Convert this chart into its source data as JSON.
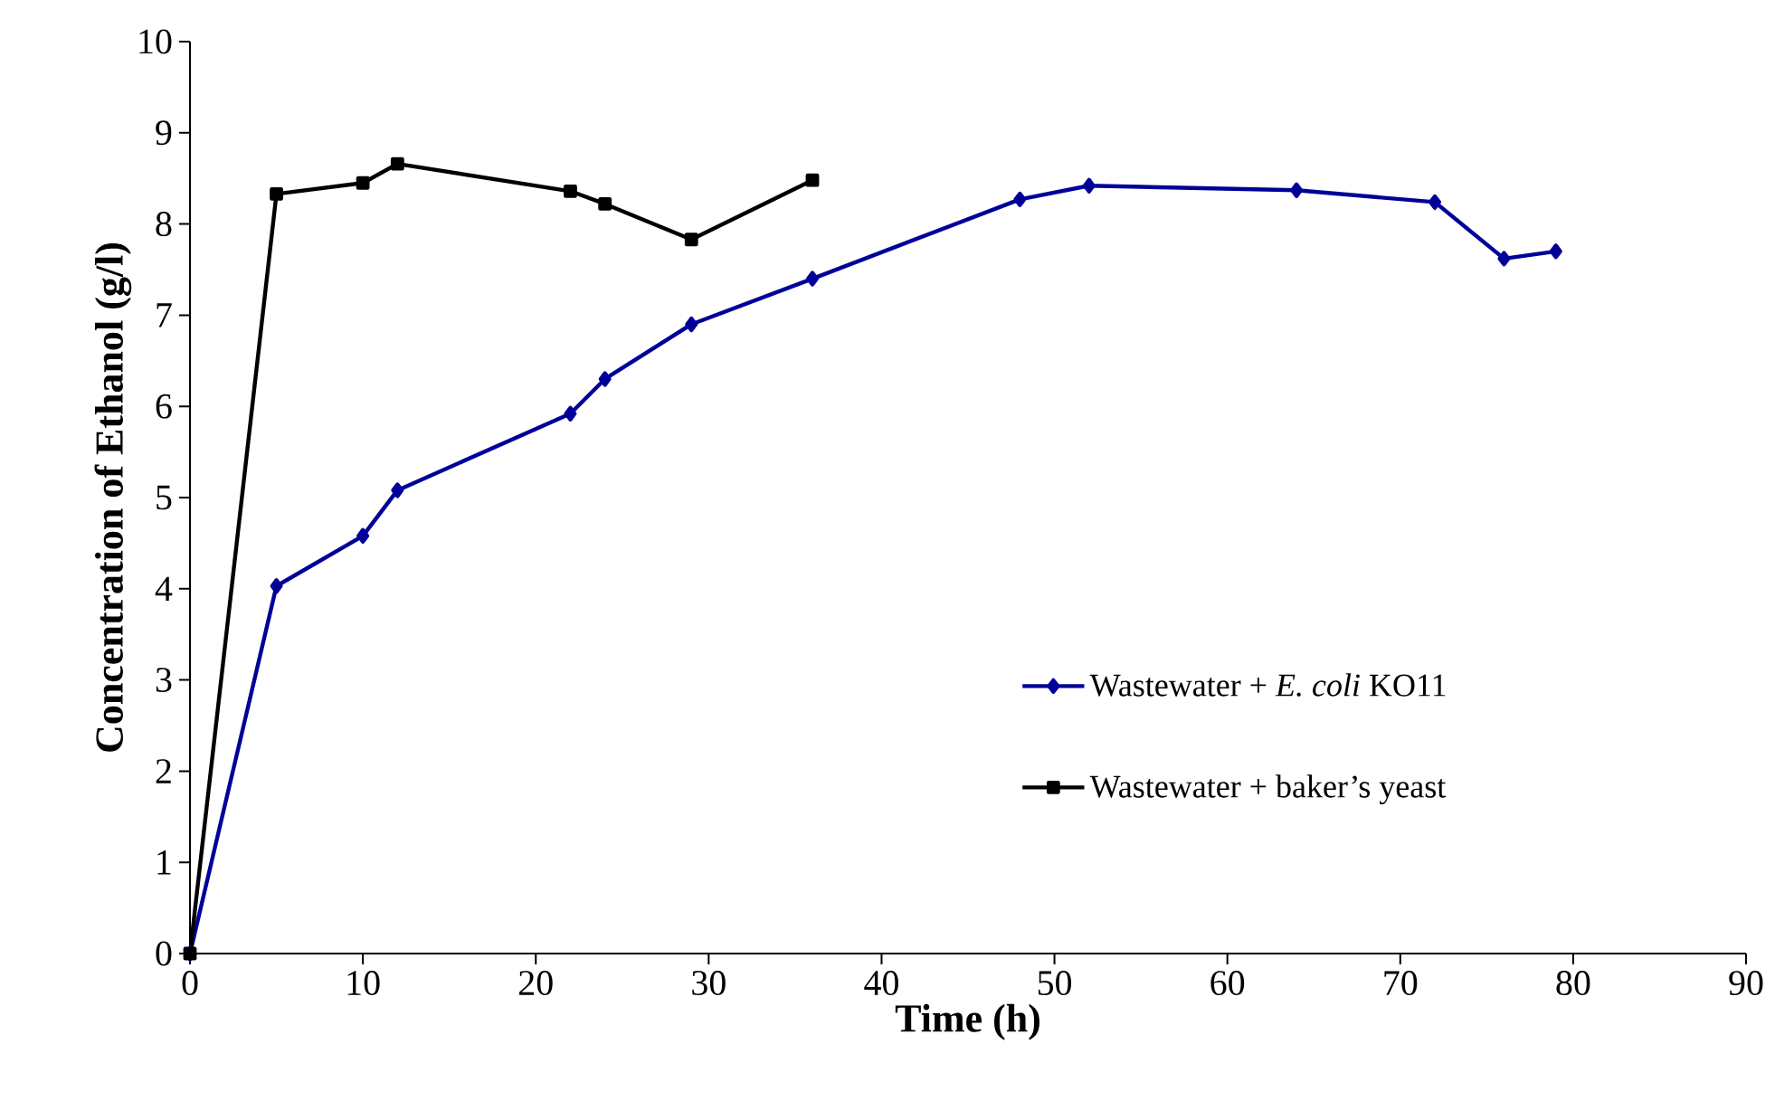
{
  "chart_data": {
    "type": "line",
    "xlabel": "Time (h)",
    "ylabel": "Concentration of Ethanol (g/l)",
    "xlim": [
      0,
      90
    ],
    "xticks": [
      0,
      10,
      20,
      30,
      40,
      50,
      60,
      70,
      80,
      90
    ],
    "ylim": [
      0,
      10
    ],
    "yticks": [
      0,
      1,
      2,
      3,
      4,
      5,
      6,
      7,
      8,
      9,
      10
    ],
    "grid": false,
    "legend": "bottom right",
    "line_style": "solid",
    "series": [
      {
        "name": "Wastewater + *E. coli* KO11",
        "color": "#000099",
        "marker": "diamond",
        "x": [
          0,
          5,
          10,
          12,
          22,
          24,
          29,
          36,
          48,
          52,
          64,
          72,
          76,
          79
        ],
        "values": [
          0,
          4.03,
          4.58,
          5.08,
          5.92,
          6.3,
          6.9,
          7.4,
          8.27,
          8.42,
          8.37,
          8.24,
          7.62,
          7.7
        ]
      },
      {
        "name": "Wastewater + baker’s yeast",
        "color": "#000000",
        "marker": "square",
        "x": [
          0,
          5,
          10,
          12,
          22,
          24,
          29,
          36
        ],
        "values": [
          0,
          8.33,
          8.45,
          8.66,
          8.36,
          8.22,
          7.83,
          8.48
        ]
      }
    ]
  }
}
